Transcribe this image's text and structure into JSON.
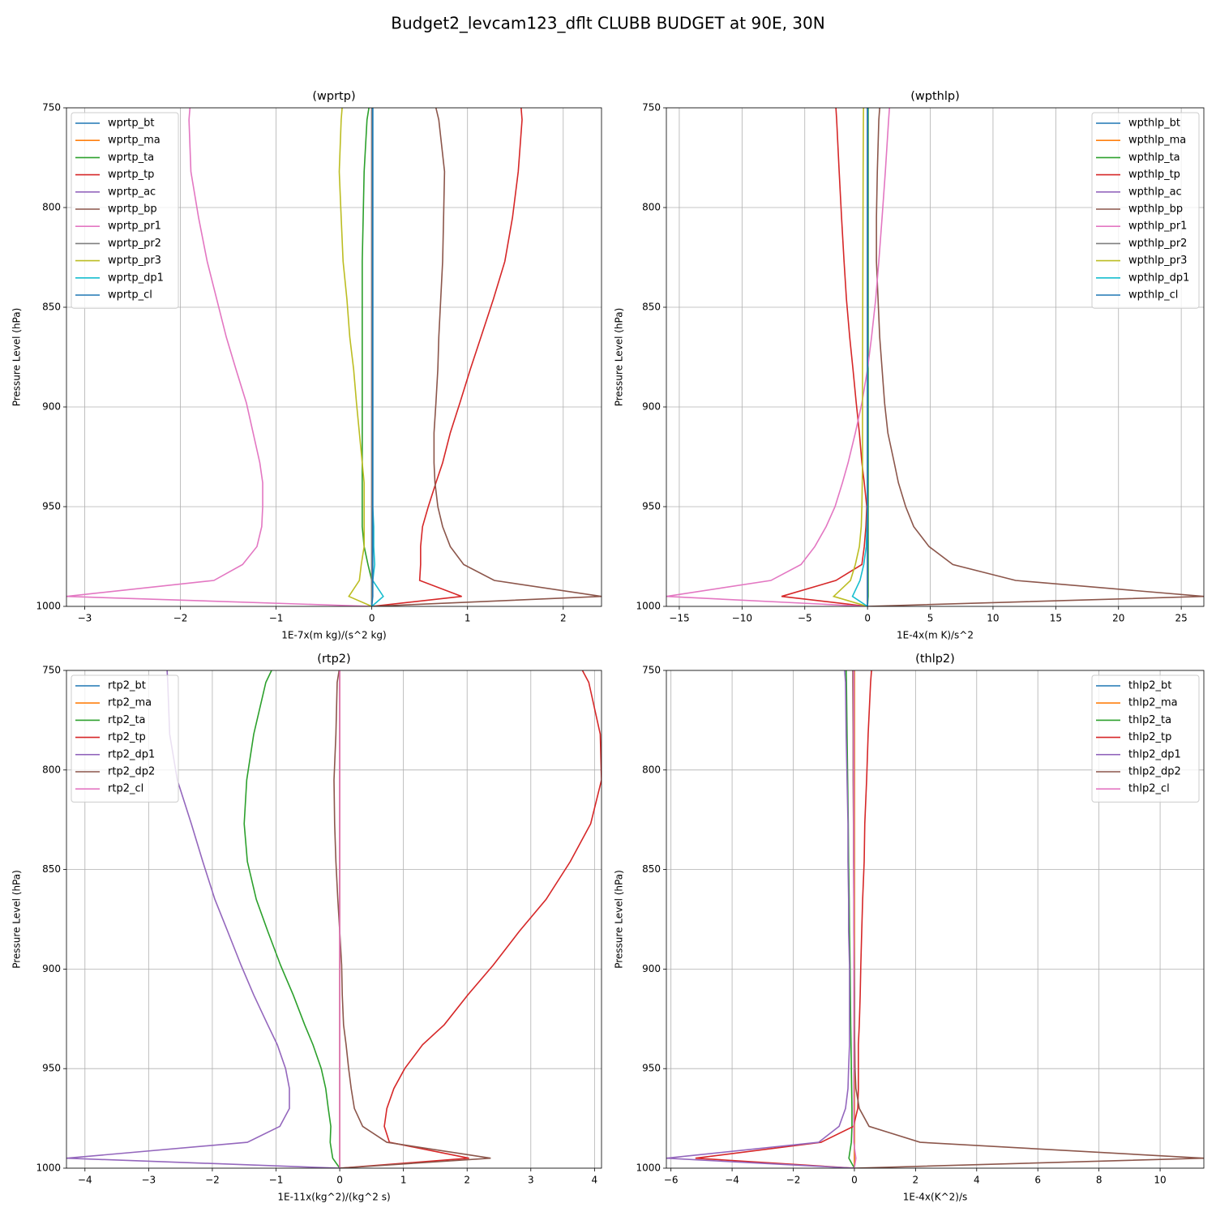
{
  "title": "Budget2_levcam123_dflt CLUBB BUDGET at 90E, 30N",
  "chart_data": [
    {
      "type": "line",
      "title": "(wprtp)",
      "xlabel": "1E-7x(m kg)/(s^2 kg)",
      "ylabel": "Pressure Level (hPa)",
      "y": [
        750,
        756,
        782,
        805,
        827,
        846,
        865,
        881,
        898,
        913,
        928,
        938,
        950,
        960,
        970,
        979,
        987,
        995,
        1000
      ],
      "xlim": [
        -3.19,
        2.4
      ],
      "ylim": [
        1000,
        750
      ],
      "xticks": [
        {
          "value": -3,
          "label": "−3"
        },
        {
          "value": -2,
          "label": "−2"
        },
        {
          "value": -1,
          "label": "−1"
        },
        0,
        1,
        2
      ],
      "yticks": [
        750,
        800,
        850,
        900,
        950,
        1000
      ],
      "grid": true,
      "legend": "upper left",
      "series": [
        {
          "name": "wprtp_bt",
          "color": "#1f77b4",
          "values": [
            0,
            0,
            0,
            0,
            0,
            0,
            0,
            0,
            0,
            0,
            0,
            0,
            0,
            0,
            0,
            0,
            0,
            0,
            0
          ]
        },
        {
          "name": "wprtp_ma",
          "color": "#ff7f0e",
          "values": [
            0,
            0,
            0,
            0,
            0,
            0,
            0,
            0,
            0,
            0,
            0,
            0,
            0,
            0,
            0,
            0,
            0,
            0,
            0
          ]
        },
        {
          "name": "wprtp_ta",
          "color": "#2ca02c",
          "values": [
            -0.03,
            -0.05,
            -0.08,
            -0.09,
            -0.1,
            -0.1,
            -0.1,
            -0.1,
            -0.1,
            -0.1,
            -0.1,
            -0.1,
            -0.1,
            -0.1,
            -0.08,
            -0.04,
            0,
            0,
            0
          ]
        },
        {
          "name": "wprtp_tp",
          "color": "#d62728",
          "values": [
            1.56,
            1.57,
            1.53,
            1.47,
            1.39,
            1.27,
            1.14,
            1.03,
            0.92,
            0.82,
            0.74,
            0.67,
            0.59,
            0.53,
            0.51,
            0.51,
            0.5,
            0.94,
            0
          ]
        },
        {
          "name": "wprtp_ac",
          "color": "#9467bd",
          "values": [
            0,
            0,
            0,
            0,
            0,
            0,
            0,
            0,
            0,
            0,
            0,
            0,
            0,
            0,
            0,
            0,
            0,
            0,
            0
          ]
        },
        {
          "name": "wprtp_bp",
          "color": "#8c564b",
          "values": [
            0.67,
            0.7,
            0.76,
            0.75,
            0.74,
            0.72,
            0.7,
            0.69,
            0.67,
            0.65,
            0.65,
            0.66,
            0.69,
            0.74,
            0.82,
            0.96,
            1.28,
            2.4,
            0
          ]
        },
        {
          "name": "wprtp_pr1",
          "color": "#e377c2",
          "values": [
            -1.9,
            -1.91,
            -1.89,
            -1.81,
            -1.72,
            -1.62,
            -1.52,
            -1.42,
            -1.31,
            -1.24,
            -1.17,
            -1.14,
            -1.14,
            -1.15,
            -1.2,
            -1.35,
            -1.65,
            -3.19,
            0
          ]
        },
        {
          "name": "wprtp_pr2",
          "color": "#7f7f7f",
          "values": [
            0,
            0,
            0,
            0,
            0,
            0,
            0,
            0,
            0,
            0,
            0,
            0,
            0,
            0,
            0,
            0,
            0,
            0,
            0
          ]
        },
        {
          "name": "wprtp_pr3",
          "color": "#bcbd22",
          "values": [
            -0.31,
            -0.32,
            -0.34,
            -0.32,
            -0.3,
            -0.26,
            -0.23,
            -0.19,
            -0.16,
            -0.13,
            -0.1,
            -0.08,
            -0.08,
            -0.08,
            -0.08,
            -0.11,
            -0.13,
            -0.24,
            0
          ]
        },
        {
          "name": "wprtp_dp1",
          "color": "#17becf",
          "values": [
            0.01,
            0.01,
            0.01,
            0.01,
            0.01,
            0.01,
            0.01,
            0.01,
            0.01,
            0.01,
            0.01,
            0.01,
            0.01,
            0.02,
            0.02,
            0.03,
            0.01,
            0.12,
            0
          ]
        },
        {
          "name": "wprtp_cl",
          "color": "#1f77b4",
          "values": [
            0.01,
            0.01,
            0.01,
            0.01,
            0.01,
            0.01,
            0.01,
            0.01,
            0.01,
            0.01,
            0.01,
            0.01,
            0.01,
            0.01,
            0.01,
            0.01,
            0.01,
            0.01,
            0
          ]
        }
      ]
    },
    {
      "type": "line",
      "title": "(wpthlp)",
      "xlabel": "1E-4x(m K)/s^2",
      "ylabel": "Pressure Level (hPa)",
      "y": [
        750,
        756,
        782,
        805,
        827,
        846,
        865,
        881,
        898,
        913,
        928,
        938,
        950,
        960,
        970,
        979,
        987,
        995,
        1000
      ],
      "xlim": [
        -16.03,
        26.8
      ],
      "ylim": [
        1000,
        750
      ],
      "xticks": [
        {
          "value": -15,
          "label": "−15"
        },
        {
          "value": -10,
          "label": "−10"
        },
        {
          "value": -5,
          "label": "−5"
        },
        0,
        5,
        10,
        15,
        20,
        25
      ],
      "yticks": [
        750,
        800,
        850,
        900,
        950,
        1000
      ],
      "grid": true,
      "legend": "upper right",
      "series": [
        {
          "name": "wpthlp_bt",
          "color": "#1f77b4",
          "values": [
            0,
            0,
            0,
            0,
            0,
            0,
            0,
            0,
            0,
            0,
            0,
            0,
            0,
            0,
            0,
            0,
            0,
            0,
            0
          ]
        },
        {
          "name": "wpthlp_ma",
          "color": "#ff7f0e",
          "values": [
            0,
            0,
            0,
            0,
            0,
            0,
            0,
            0,
            0,
            0,
            0,
            0,
            0,
            0,
            0,
            0,
            0,
            0,
            0
          ]
        },
        {
          "name": "wpthlp_ta",
          "color": "#2ca02c",
          "values": [
            0.05,
            0.05,
            0.05,
            0.05,
            0.05,
            0.05,
            0.05,
            0.05,
            0.05,
            0.05,
            0.05,
            0.05,
            0.05,
            0.05,
            0.05,
            0.05,
            0.05,
            0.05,
            0
          ]
        },
        {
          "name": "wpthlp_tp",
          "color": "#d62728",
          "values": [
            -2.52,
            -2.46,
            -2.26,
            -2.07,
            -1.87,
            -1.68,
            -1.42,
            -1.16,
            -0.9,
            -0.65,
            -0.45,
            -0.26,
            -0.06,
            -0.13,
            -0.26,
            -0.45,
            -2.52,
            -6.85,
            0
          ]
        },
        {
          "name": "wpthlp_ac",
          "color": "#9467bd",
          "values": [
            0,
            0,
            0,
            0,
            0,
            0,
            0,
            0,
            0,
            0,
            0,
            0,
            0,
            0,
            0,
            0,
            0,
            0,
            0
          ]
        },
        {
          "name": "wpthlp_bp",
          "color": "#8c564b",
          "values": [
            0.97,
            0.9,
            0.78,
            0.71,
            0.71,
            0.84,
            0.97,
            1.16,
            1.36,
            1.62,
            2.13,
            2.46,
            3.04,
            3.68,
            4.9,
            6.8,
            11.8,
            26.8,
            0
          ]
        },
        {
          "name": "wpthlp_pr1",
          "color": "#e377c2",
          "values": [
            1.75,
            1.68,
            1.42,
            1.16,
            0.9,
            0.65,
            0.32,
            0,
            -0.45,
            -0.97,
            -1.55,
            -2.0,
            -2.59,
            -3.3,
            -4.2,
            -5.3,
            -7.7,
            -16.03,
            0
          ]
        },
        {
          "name": "wpthlp_pr2",
          "color": "#7f7f7f",
          "values": [
            0,
            0,
            0,
            0,
            0,
            0,
            0,
            0,
            0,
            0,
            0,
            0,
            0,
            0,
            0,
            0,
            0,
            0,
            0
          ]
        },
        {
          "name": "wpthlp_pr3",
          "color": "#bcbd22",
          "values": [
            -0.32,
            -0.33,
            -0.35,
            -0.36,
            -0.37,
            -0.38,
            -0.39,
            -0.4,
            -0.4,
            -0.4,
            -0.4,
            -0.42,
            -0.45,
            -0.5,
            -0.65,
            -0.97,
            -1.36,
            -2.7,
            0
          ]
        },
        {
          "name": "wpthlp_dp1",
          "color": "#17becf",
          "values": [
            0,
            0,
            0,
            0,
            0,
            0,
            0,
            0,
            0,
            0,
            0,
            0,
            0,
            -0.05,
            -0.1,
            -0.3,
            -0.6,
            -1.2,
            0
          ]
        },
        {
          "name": "wpthlp_cl",
          "color": "#1f77b4",
          "values": [
            0,
            0,
            0,
            0,
            0,
            0,
            0,
            0,
            0,
            0,
            0,
            0,
            0,
            0,
            0,
            0,
            0,
            0,
            0
          ]
        }
      ]
    },
    {
      "type": "line",
      "title": "(rtp2)",
      "xlabel": "1E-11x(kg^2)/(kg^2 s)",
      "ylabel": "Pressure Level (hPa)",
      "y": [
        750,
        756,
        782,
        805,
        827,
        846,
        865,
        881,
        898,
        913,
        928,
        938,
        950,
        960,
        970,
        979,
        987,
        995,
        1000
      ],
      "xlim": [
        -4.29,
        4.11
      ],
      "ylim": [
        1000,
        750
      ],
      "xticks": [
        {
          "value": -4,
          "label": "−4"
        },
        {
          "value": -3,
          "label": "−3"
        },
        {
          "value": -2,
          "label": "−2"
        },
        {
          "value": -1,
          "label": "−1"
        },
        0,
        1,
        2,
        3,
        4
      ],
      "yticks": [
        750,
        800,
        850,
        900,
        950,
        1000
      ],
      "grid": true,
      "legend": "upper left",
      "series": [
        {
          "name": "rtp2_bt",
          "color": "#1f77b4",
          "values": [
            0,
            0,
            0,
            0,
            0,
            0,
            0,
            0,
            0,
            0,
            0,
            0,
            0,
            0,
            0,
            0,
            0,
            0,
            0
          ]
        },
        {
          "name": "rtp2_ma",
          "color": "#ff7f0e",
          "values": [
            0,
            0,
            0,
            0,
            0,
            0,
            0,
            0,
            0,
            0,
            0,
            0,
            0,
            0,
            0,
            0,
            0,
            0,
            0
          ]
        },
        {
          "name": "rtp2_ta",
          "color": "#2ca02c",
          "values": [
            -1.07,
            -1.16,
            -1.35,
            -1.46,
            -1.5,
            -1.45,
            -1.31,
            -1.13,
            -0.93,
            -0.73,
            -0.55,
            -0.42,
            -0.29,
            -0.22,
            -0.18,
            -0.14,
            -0.15,
            -0.11,
            0
          ]
        },
        {
          "name": "rtp2_tp",
          "color": "#d62728",
          "values": [
            3.81,
            3.91,
            4.09,
            4.11,
            3.94,
            3.62,
            3.24,
            2.82,
            2.41,
            2.01,
            1.64,
            1.3,
            1.02,
            0.85,
            0.74,
            0.7,
            0.78,
            2.03,
            0
          ]
        },
        {
          "name": "rtp2_dp1",
          "color": "#9467bd",
          "values": [
            -2.71,
            -2.7,
            -2.67,
            -2.55,
            -2.33,
            -2.15,
            -1.96,
            -1.76,
            -1.55,
            -1.35,
            -1.13,
            -0.98,
            -0.85,
            -0.79,
            -0.79,
            -0.94,
            -1.45,
            -4.29,
            0
          ]
        },
        {
          "name": "rtp2_dp2",
          "color": "#8c564b",
          "values": [
            -0.01,
            -0.04,
            -0.06,
            -0.09,
            -0.08,
            -0.06,
            -0.03,
            0,
            0.03,
            0.04,
            0.06,
            0.1,
            0.14,
            0.18,
            0.23,
            0.36,
            0.74,
            2.37,
            0
          ]
        },
        {
          "name": "rtp2_cl",
          "color": "#e377c2",
          "values": [
            0,
            0,
            0,
            0,
            0,
            0,
            0,
            0,
            0,
            0,
            0,
            0,
            0,
            0,
            0,
            0,
            0,
            0,
            0
          ]
        }
      ]
    },
    {
      "type": "line",
      "title": "(thlp2)",
      "xlabel": "1E-4x(K^2)/s",
      "ylabel": "Pressure Level (hPa)",
      "y": [
        750,
        756,
        782,
        805,
        827,
        846,
        865,
        881,
        898,
        913,
        928,
        938,
        950,
        960,
        970,
        979,
        987,
        995,
        1000
      ],
      "xlim": [
        -6.15,
        11.43
      ],
      "ylim": [
        1000,
        750
      ],
      "xticks": [
        {
          "value": -6,
          "label": "−6"
        },
        {
          "value": -4,
          "label": "−4"
        },
        {
          "value": -2,
          "label": "−2"
        },
        0,
        2,
        4,
        6,
        8,
        10
      ],
      "yticks": [
        750,
        800,
        850,
        900,
        950,
        1000
      ],
      "grid": true,
      "legend": "upper right",
      "series": [
        {
          "name": "thlp2_bt",
          "color": "#1f77b4",
          "values": [
            0,
            0,
            0,
            0,
            0,
            0,
            0,
            0,
            0,
            0,
            0,
            0,
            0,
            0,
            0,
            0,
            0,
            0,
            0
          ]
        },
        {
          "name": "thlp2_ma",
          "color": "#ff7f0e",
          "values": [
            0,
            0,
            0,
            0,
            0,
            0,
            0,
            0,
            0,
            0,
            0,
            0,
            0,
            0,
            0,
            0,
            0,
            0,
            0
          ]
        },
        {
          "name": "thlp2_ta",
          "color": "#2ca02c",
          "values": [
            -0.27,
            -0.26,
            -0.24,
            -0.22,
            -0.2,
            -0.19,
            -0.17,
            -0.16,
            -0.14,
            -0.13,
            -0.12,
            -0.11,
            -0.1,
            -0.09,
            -0.08,
            -0.08,
            -0.1,
            -0.18,
            0
          ]
        },
        {
          "name": "thlp2_tp",
          "color": "#d62728",
          "values": [
            0.56,
            0.53,
            0.45,
            0.4,
            0.34,
            0.32,
            0.27,
            0.24,
            0.21,
            0.19,
            0.16,
            0.13,
            0.13,
            0.13,
            0.11,
            -0.03,
            -1.09,
            -5.2,
            0
          ]
        },
        {
          "name": "thlp2_dp1",
          "color": "#9467bd",
          "values": [
            -0.32,
            -0.29,
            -0.27,
            -0.24,
            -0.21,
            -0.21,
            -0.19,
            -0.19,
            -0.16,
            -0.16,
            -0.16,
            -0.16,
            -0.19,
            -0.21,
            -0.29,
            -0.5,
            -1.17,
            -6.15,
            0
          ]
        },
        {
          "name": "thlp2_dp2",
          "color": "#8c564b",
          "values": [
            -0.05,
            -0.05,
            -0.04,
            -0.04,
            -0.03,
            -0.03,
            -0.02,
            -0.02,
            -0.01,
            0,
            0,
            0.01,
            0.02,
            0.05,
            0.16,
            0.48,
            2.15,
            11.43,
            0
          ]
        },
        {
          "name": "thlp2_cl",
          "color": "#e377c2",
          "values": [
            -0.02,
            -0.02,
            -0.02,
            -0.02,
            -0.02,
            -0.02,
            -0.02,
            -0.02,
            -0.02,
            -0.02,
            -0.02,
            -0.02,
            -0.02,
            -0.02,
            -0.02,
            -0.02,
            -0.02,
            0.05,
            0
          ]
        }
      ]
    }
  ]
}
